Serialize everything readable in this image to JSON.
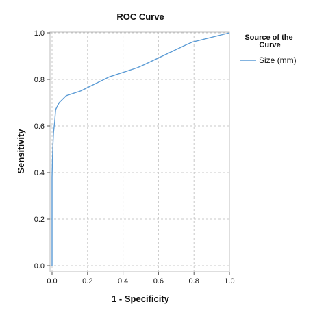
{
  "chart_data": {
    "type": "line",
    "title": "ROC Curve",
    "xlabel": "1 - Specificity",
    "ylabel": "Sensitivity",
    "xlim": [
      0.0,
      1.0
    ],
    "ylim": [
      0.0,
      1.0
    ],
    "xticks": [
      "0.0",
      "0.2",
      "0.4",
      "0.6",
      "0.8",
      "1.0"
    ],
    "yticks": [
      "0.0",
      "0.2",
      "0.4",
      "0.6",
      "0.8",
      "1.0"
    ],
    "grid": true,
    "legend": {
      "title": "Source of the Curve",
      "placement": "right"
    },
    "series": [
      {
        "name": "Size (mm)",
        "color": "#5b9bd5",
        "points": [
          [
            0.0,
            0.0
          ],
          [
            0.0,
            0.38
          ],
          [
            0.002,
            0.45
          ],
          [
            0.005,
            0.52
          ],
          [
            0.008,
            0.57
          ],
          [
            0.015,
            0.62
          ],
          [
            0.02,
            0.67
          ],
          [
            0.04,
            0.7
          ],
          [
            0.08,
            0.73
          ],
          [
            0.16,
            0.75
          ],
          [
            0.32,
            0.81
          ],
          [
            0.48,
            0.85
          ],
          [
            0.51,
            0.86
          ],
          [
            0.76,
            0.95
          ],
          [
            0.79,
            0.96
          ],
          [
            1.0,
            1.0
          ]
        ]
      }
    ]
  }
}
